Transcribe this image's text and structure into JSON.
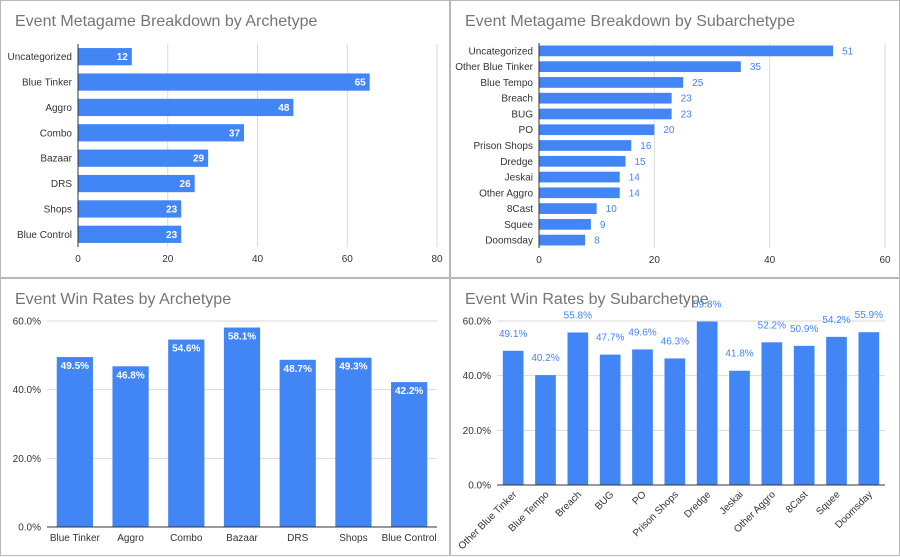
{
  "colors": {
    "bar": "#4285f4",
    "grid": "#d9d9d9",
    "axis": "#333333",
    "label_on_bar": "#ffffff",
    "label_outside": "#4285f4",
    "title": "#757575"
  },
  "chart_data": [
    {
      "type": "bar",
      "orientation": "horizontal",
      "title": "Event Metagame Breakdown by Archetype",
      "categories": [
        "Uncategorized",
        "Blue Tinker",
        "Aggro",
        "Combo",
        "Bazaar",
        "DRS",
        "Shops",
        "Blue Control"
      ],
      "values": [
        12,
        65,
        48,
        37,
        29,
        26,
        23,
        23
      ],
      "xlim": [
        0,
        80
      ],
      "ticks": [
        0,
        20,
        40,
        60,
        80
      ],
      "tick_labels": [
        "0",
        "20",
        "40",
        "60",
        "80"
      ],
      "data_labels": "inside-end",
      "grid": true
    },
    {
      "type": "bar",
      "orientation": "horizontal",
      "title": "Event Metagame Breakdown by Subarchetype",
      "categories": [
        "Uncategorized",
        "Other Blue Tinker",
        "Blue Tempo",
        "Breach",
        "BUG",
        "PO",
        "Prison Shops",
        "Dredge",
        "Jeskai",
        "Other Aggro",
        "8Cast",
        "Squee",
        "Doomsday"
      ],
      "values": [
        51,
        35,
        25,
        23,
        23,
        20,
        16,
        15,
        14,
        14,
        10,
        9,
        8
      ],
      "xlim": [
        0,
        60
      ],
      "ticks": [
        0,
        20,
        40,
        60
      ],
      "tick_labels": [
        "0",
        "20",
        "40",
        "60"
      ],
      "data_labels": "outside-end",
      "grid": true
    },
    {
      "type": "bar",
      "orientation": "vertical",
      "title": "Event Win Rates by Archetype",
      "categories": [
        "Blue Tinker",
        "Aggro",
        "Combo",
        "Bazaar",
        "DRS",
        "Shops",
        "Blue Control"
      ],
      "values": [
        49.5,
        46.8,
        54.6,
        58.1,
        48.7,
        49.3,
        42.2
      ],
      "value_labels": [
        "49.5%",
        "46.8%",
        "54.6%",
        "58.1%",
        "48.7%",
        "49.3%",
        "42.2%"
      ],
      "ylim": [
        0,
        60
      ],
      "ticks": [
        0,
        20,
        40,
        60
      ],
      "tick_labels": [
        "0.0%",
        "20.0%",
        "40.0%",
        "60.0%"
      ],
      "data_labels": "inside-end",
      "grid": true
    },
    {
      "type": "bar",
      "orientation": "vertical",
      "title": "Event Win Rates by Subarchetype",
      "categories": [
        "Other Blue Tinker",
        "Blue Tempo",
        "Breach",
        "BUG",
        "PO",
        "Prison Shops",
        "Dredge",
        "Jeskai",
        "Other Aggro",
        "8Cast",
        "Squee",
        "Doomsday"
      ],
      "values": [
        49.1,
        40.2,
        55.8,
        47.7,
        49.6,
        46.3,
        59.8,
        41.8,
        52.2,
        50.9,
        54.2,
        55.9
      ],
      "value_labels": [
        "49.1%",
        "40.2%",
        "55.8%",
        "47.7%",
        "49.6%",
        "46.3%",
        "59.8%",
        "41.8%",
        "52.2%",
        "50.9%",
        "54.2%",
        "55.9%"
      ],
      "ylim": [
        0,
        60
      ],
      "ticks": [
        0,
        20,
        40,
        60
      ],
      "tick_labels": [
        "0.0%",
        "20.0%",
        "40.0%",
        "60.0%"
      ],
      "data_labels": "outside-end",
      "x_label_rotation": "-45",
      "grid": true
    }
  ]
}
